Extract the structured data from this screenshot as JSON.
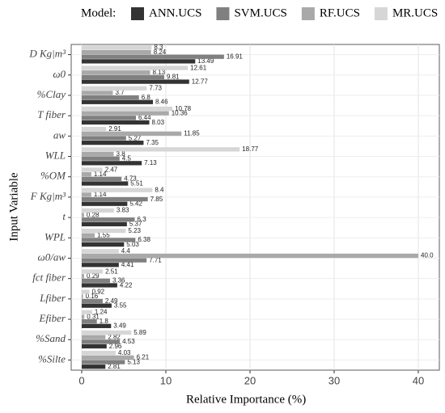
{
  "chart_data": {
    "type": "hbar",
    "x_label": "Relative Importance (%)",
    "y_label": "Input Variable",
    "legend_title": "Model:",
    "categories": [
      "D Kg|m³",
      "ω0",
      "%Clay",
      "T fiber",
      "aw",
      "WLL",
      "%OM",
      "F Kg|m³",
      "t",
      "WPL",
      "ω0/aw",
      "fct fiber",
      "Lfiber",
      "Efiber",
      "%Sand",
      "%Silte"
    ],
    "series": [
      {
        "name": "ANN.UCS",
        "color": "#333333",
        "values": [
          13.49,
          12.77,
          8.46,
          8.03,
          7.35,
          7.13,
          5.51,
          5.42,
          5.37,
          5.03,
          4.41,
          4.22,
          3.55,
          3.49,
          2.96,
          2.81
        ]
      },
      {
        "name": "SVM.UCS",
        "color": "#808080",
        "values": [
          16.91,
          9.81,
          6.8,
          6.44,
          5.27,
          4.5,
          4.73,
          7.85,
          6.3,
          6.38,
          7.71,
          3.36,
          2.49,
          1.8,
          4.53,
          5.13
        ]
      },
      {
        "name": "RF.UCS",
        "color": "#a9a9a9",
        "values": [
          8.24,
          8.13,
          3.7,
          10.36,
          11.85,
          3.8,
          1.14,
          1.14,
          0.28,
          1.55,
          40.0,
          0.29,
          0.16,
          0.31,
          2.82,
          6.21
        ],
        "value_labels": [
          "8.24",
          "8.13",
          "3.7",
          "10.36",
          "11.85",
          "3.8",
          "1.14",
          "1.14",
          "0.28",
          "1.55",
          "40.0",
          "0.29",
          "0.16",
          "0.31",
          "2.82",
          "6.21"
        ]
      },
      {
        "name": "MR.UCS",
        "color": "#d6d6d6",
        "values": [
          8.3,
          12.61,
          7.73,
          10.78,
          2.91,
          18.77,
          2.47,
          8.4,
          3.83,
          5.23,
          4.4,
          2.51,
          0.92,
          1.24,
          5.89,
          4.03
        ]
      }
    ],
    "xlim": [
      -1.25,
      42.5
    ],
    "xticks": [
      0,
      10,
      20,
      30,
      40
    ],
    "grid": true
  }
}
